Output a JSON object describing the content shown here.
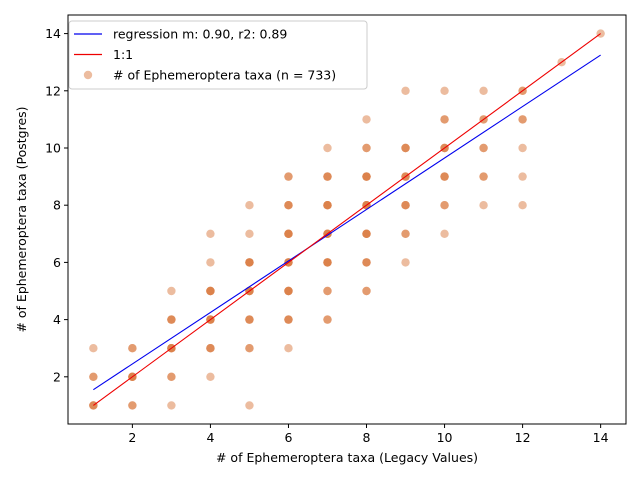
{
  "chart_data": {
    "type": "scatter",
    "title": "",
    "xlabel": "# of Ephemeroptera taxa (Legacy Values)",
    "ylabel": "# of Ephemeroptera taxa (Postgres)",
    "xlim": [
      0.35,
      14.65
    ],
    "ylim": [
      0.35,
      14.65
    ],
    "xticks": [
      2,
      4,
      6,
      8,
      10,
      12,
      14
    ],
    "yticks": [
      2,
      4,
      6,
      8,
      10,
      12,
      14
    ],
    "grid": false,
    "legend_placement": "top-left",
    "series": [
      {
        "name": "# of Ephemeroptera taxa (n = 733)",
        "kind": "scatter",
        "color": "#d97a40",
        "points": [
          [
            1,
            1
          ],
          [
            1,
            1
          ],
          [
            1,
            1
          ],
          [
            1,
            2
          ],
          [
            1,
            2
          ],
          [
            1,
            3
          ],
          [
            2,
            1
          ],
          [
            2,
            1
          ],
          [
            2,
            2
          ],
          [
            2,
            2
          ],
          [
            2,
            2
          ],
          [
            2,
            2
          ],
          [
            2,
            3
          ],
          [
            2,
            3
          ],
          [
            3,
            1
          ],
          [
            3,
            2
          ],
          [
            3,
            2
          ],
          [
            3,
            3
          ],
          [
            3,
            3
          ],
          [
            3,
            3
          ],
          [
            3,
            3
          ],
          [
            3,
            4
          ],
          [
            3,
            4
          ],
          [
            3,
            4
          ],
          [
            3,
            5
          ],
          [
            4,
            2
          ],
          [
            4,
            3
          ],
          [
            4,
            3
          ],
          [
            4,
            3
          ],
          [
            4,
            4
          ],
          [
            4,
            4
          ],
          [
            4,
            4
          ],
          [
            4,
            4
          ],
          [
            4,
            5
          ],
          [
            4,
            5
          ],
          [
            4,
            5
          ],
          [
            4,
            5
          ],
          [
            4,
            6
          ],
          [
            4,
            7
          ],
          [
            5,
            1
          ],
          [
            5,
            3
          ],
          [
            5,
            3
          ],
          [
            5,
            4
          ],
          [
            5,
            4
          ],
          [
            5,
            4
          ],
          [
            5,
            5
          ],
          [
            5,
            5
          ],
          [
            5,
            5
          ],
          [
            5,
            5
          ],
          [
            5,
            6
          ],
          [
            5,
            6
          ],
          [
            5,
            6
          ],
          [
            5,
            6
          ],
          [
            5,
            7
          ],
          [
            5,
            8
          ],
          [
            6,
            3
          ],
          [
            6,
            4
          ],
          [
            6,
            4
          ],
          [
            6,
            4
          ],
          [
            6,
            5
          ],
          [
            6,
            5
          ],
          [
            6,
            5
          ],
          [
            6,
            5
          ],
          [
            6,
            6
          ],
          [
            6,
            6
          ],
          [
            6,
            6
          ],
          [
            6,
            6
          ],
          [
            6,
            7
          ],
          [
            6,
            7
          ],
          [
            6,
            7
          ],
          [
            6,
            7
          ],
          [
            6,
            8
          ],
          [
            6,
            8
          ],
          [
            6,
            8
          ],
          [
            6,
            9
          ],
          [
            6,
            9
          ],
          [
            7,
            4
          ],
          [
            7,
            4
          ],
          [
            7,
            5
          ],
          [
            7,
            5
          ],
          [
            7,
            6
          ],
          [
            7,
            6
          ],
          [
            7,
            6
          ],
          [
            7,
            6
          ],
          [
            7,
            7
          ],
          [
            7,
            7
          ],
          [
            7,
            7
          ],
          [
            7,
            7
          ],
          [
            7,
            8
          ],
          [
            7,
            8
          ],
          [
            7,
            8
          ],
          [
            7,
            8
          ],
          [
            7,
            9
          ],
          [
            7,
            9
          ],
          [
            7,
            9
          ],
          [
            7,
            10
          ],
          [
            8,
            5
          ],
          [
            8,
            5
          ],
          [
            8,
            6
          ],
          [
            8,
            6
          ],
          [
            8,
            6
          ],
          [
            8,
            7
          ],
          [
            8,
            7
          ],
          [
            8,
            7
          ],
          [
            8,
            7
          ],
          [
            8,
            8
          ],
          [
            8,
            8
          ],
          [
            8,
            8
          ],
          [
            8,
            8
          ],
          [
            8,
            9
          ],
          [
            8,
            9
          ],
          [
            8,
            9
          ],
          [
            8,
            9
          ],
          [
            8,
            10
          ],
          [
            8,
            10
          ],
          [
            8,
            11
          ],
          [
            9,
            6
          ],
          [
            9,
            7
          ],
          [
            9,
            7
          ],
          [
            9,
            8
          ],
          [
            9,
            8
          ],
          [
            9,
            8
          ],
          [
            9,
            9
          ],
          [
            9,
            9
          ],
          [
            9,
            9
          ],
          [
            9,
            10
          ],
          [
            9,
            10
          ],
          [
            9,
            10
          ],
          [
            9,
            12
          ],
          [
            10,
            7
          ],
          [
            10,
            8
          ],
          [
            10,
            8
          ],
          [
            10,
            9
          ],
          [
            10,
            9
          ],
          [
            10,
            9
          ],
          [
            10,
            10
          ],
          [
            10,
            10
          ],
          [
            10,
            10
          ],
          [
            10,
            11
          ],
          [
            10,
            11
          ],
          [
            10,
            12
          ],
          [
            11,
            8
          ],
          [
            11,
            9
          ],
          [
            11,
            9
          ],
          [
            11,
            10
          ],
          [
            11,
            10
          ],
          [
            11,
            11
          ],
          [
            11,
            11
          ],
          [
            11,
            12
          ],
          [
            12,
            8
          ],
          [
            12,
            9
          ],
          [
            12,
            10
          ],
          [
            12,
            11
          ],
          [
            12,
            11
          ],
          [
            12,
            12
          ],
          [
            12,
            12
          ],
          [
            13,
            13
          ],
          [
            14,
            14
          ]
        ]
      },
      {
        "name": "regression m: 0.90, r2: 0.89",
        "kind": "line",
        "color": "#0000ee",
        "points": [
          [
            1,
            1.55
          ],
          [
            14,
            13.25
          ]
        ]
      },
      {
        "name": "1:1",
        "kind": "line",
        "color": "#ee0000",
        "points": [
          [
            1,
            1
          ],
          [
            14,
            14
          ]
        ]
      }
    ]
  }
}
